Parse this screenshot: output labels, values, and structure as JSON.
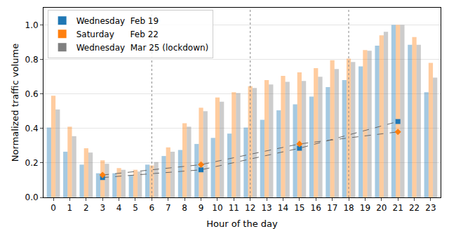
{
  "chart_data": {
    "type": "bar",
    "x_label": "Hour of the day",
    "y_label": "Normalized traffic volume",
    "x": [
      0,
      1,
      2,
      3,
      4,
      5,
      6,
      7,
      8,
      9,
      10,
      11,
      12,
      13,
      14,
      15,
      16,
      17,
      18,
      19,
      20,
      21,
      22,
      23
    ],
    "xlim": [
      -0.6,
      23.6
    ],
    "xticks": [
      0,
      1,
      2,
      3,
      4,
      5,
      6,
      7,
      8,
      9,
      10,
      11,
      12,
      13,
      14,
      15,
      16,
      17,
      18,
      19,
      20,
      21,
      22,
      23
    ],
    "ylim": [
      0,
      1.1
    ],
    "yticks": [
      {
        "value": 0,
        "label": "0.0"
      },
      0.2,
      0.4,
      0.6,
      0.8,
      {
        "value": 1,
        "label": "1.0"
      }
    ],
    "grid": true,
    "legend": "upper left",
    "vlines": [
      6,
      12,
      18
    ],
    "series": [
      {
        "name": "Wednesday  Feb 19",
        "color": "#1f77b4",
        "values": [
          0.405,
          0.265,
          0.19,
          0.14,
          0.14,
          0.13,
          0.19,
          0.24,
          0.275,
          0.31,
          0.345,
          0.37,
          0.405,
          0.45,
          0.505,
          0.54,
          0.585,
          0.64,
          0.68,
          0.76,
          0.88,
          1.0,
          0.885,
          0.61
        ]
      },
      {
        "name": "Saturday      Feb 22",
        "color": "#ff7f0e",
        "values": [
          0.59,
          0.41,
          0.285,
          0.215,
          0.17,
          0.16,
          0.185,
          0.29,
          0.43,
          0.52,
          0.58,
          0.61,
          0.645,
          0.68,
          0.705,
          0.725,
          0.75,
          0.795,
          0.805,
          0.855,
          0.94,
          1.0,
          0.93,
          0.78
        ]
      },
      {
        "name": "Wednesday  Mar 25 (lockdown)",
        "color": "#7f7f7f",
        "values": [
          0.51,
          0.355,
          0.26,
          0.195,
          0.16,
          0.15,
          0.205,
          0.265,
          0.41,
          0.5,
          0.555,
          0.605,
          0.635,
          0.655,
          0.67,
          0.675,
          0.7,
          0.745,
          0.785,
          0.85,
          0.96,
          1.0,
          0.885,
          0.695
        ]
      },
      {
        "type": "line",
        "color": "#1f77b4",
        "marker": "square",
        "line_style": "dashed",
        "x": [
          3,
          9,
          15,
          21
        ],
        "values": [
          0.115,
          0.16,
          0.285,
          0.44
        ]
      },
      {
        "type": "line",
        "color": "#ff7f0e",
        "marker": "diamond",
        "line_style": "dashed",
        "x": [
          3,
          9,
          15,
          21
        ],
        "values": [
          0.13,
          0.19,
          0.31,
          0.38
        ]
      }
    ]
  }
}
